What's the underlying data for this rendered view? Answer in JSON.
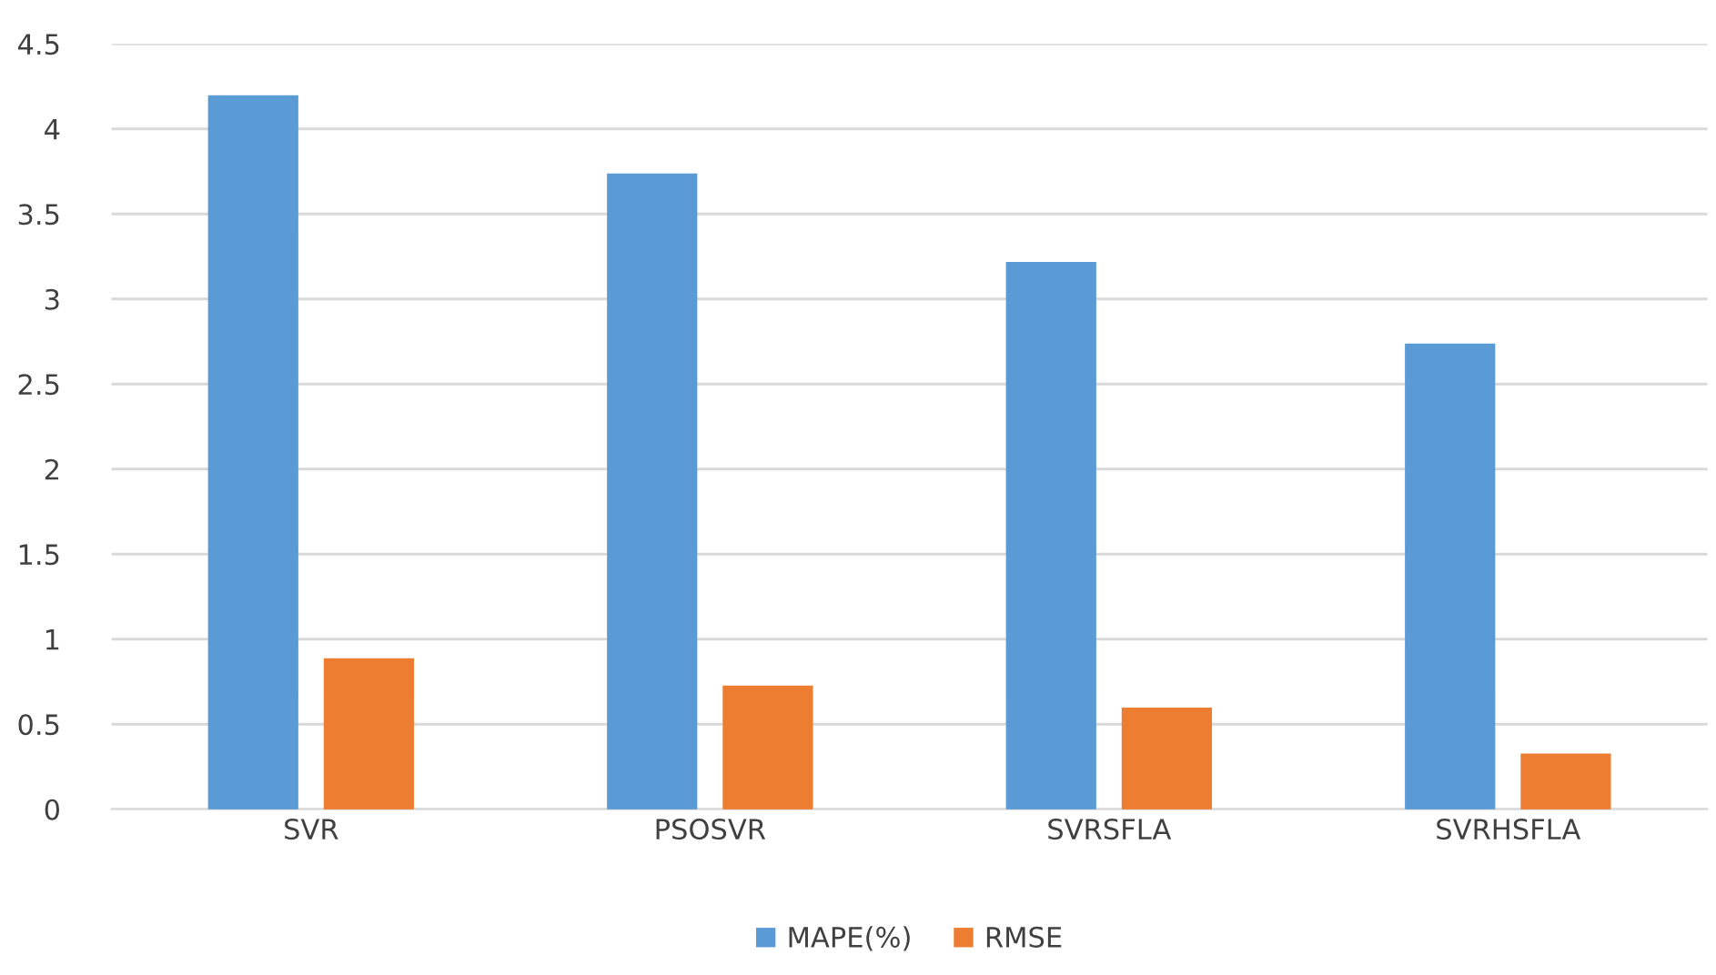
{
  "chart_data": {
    "type": "bar",
    "categories": [
      "SVR",
      "PSOSVR",
      "SVRSFLA",
      "SVRHSFLA"
    ],
    "series": [
      {
        "name": "MAPE(%)",
        "color": "#5b9bd5",
        "values": [
          4.19,
          3.73,
          3.21,
          2.73
        ]
      },
      {
        "name": "RMSE",
        "color": "#ed7d31",
        "values": [
          0.88,
          0.72,
          0.59,
          0.32
        ]
      }
    ],
    "ylim": [
      0,
      4.5
    ],
    "yticks": [
      0,
      0.5,
      1,
      1.5,
      2,
      2.5,
      3,
      3.5,
      4,
      4.5
    ],
    "grid": "y",
    "legend": "bottom"
  }
}
